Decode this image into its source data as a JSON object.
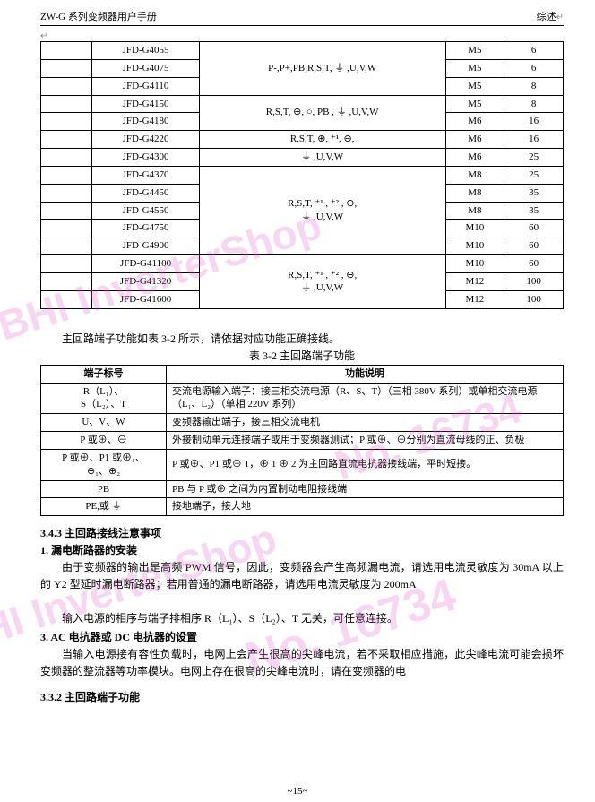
{
  "header": {
    "left": "ZW-G 系列变频器用户手册",
    "right": "综述"
  },
  "table1": {
    "rows": [
      {
        "model": "JFD-G4055",
        "s": "M5",
        "q": "6"
      },
      {
        "model": "JFD-G4075",
        "s": "M5",
        "q": "6"
      },
      {
        "model": "JFD-G4110",
        "s": "M5",
        "q": "8"
      },
      {
        "model": "JFD-G4150",
        "s": "M5",
        "q": "8"
      },
      {
        "model": "JFD-G4180",
        "s": "M6",
        "q": "16"
      },
      {
        "model": "JFD-G4220",
        "s": "M6",
        "q": "16"
      },
      {
        "model": "JFD-G4300",
        "s": "M6",
        "q": "25"
      },
      {
        "model": "JFD-G4370",
        "s": "M8",
        "q": "25"
      },
      {
        "model": "JFD-G4450",
        "s": "M8",
        "q": "35"
      },
      {
        "model": "JFD-G4550",
        "s": "M8",
        "q": "35"
      },
      {
        "model": "JFD-G4750",
        "s": "M10",
        "q": "60"
      },
      {
        "model": "JFD-G4900",
        "s": "M10",
        "q": "60"
      },
      {
        "model": "JFD-G41100",
        "s": "M10",
        "q": "60"
      },
      {
        "model": "JFD-G41320",
        "s": "M12",
        "q": "100"
      },
      {
        "model": "JFD-G41600",
        "s": "M12",
        "q": "100"
      }
    ],
    "termGroups": [
      {
        "span": 3,
        "text": "P-,P+,PB,R,S,T, ⏚ ,U,V,W"
      },
      {
        "span": 2,
        "text": "R,S,T, ⊕, ○, PB , ⏚ ,U,V,W"
      },
      {
        "span": 1,
        "text": "R,S,T, ⊕, ⁺¹, ⊖,"
      },
      {
        "span": 1,
        "text": "⏚ ,U,V,W"
      },
      {
        "span": 5,
        "text": "R,S,T, ⁺¹ , ⁺² , ⊖,\n⏚ ,U,V,W"
      },
      {
        "span": 3,
        "text": "R,S,T, ⁺¹ , ⁺² , ⊖,\n⏚ ,U,V,W"
      }
    ]
  },
  "caption1": "主回路端子功能如表 3-2 所示，请依据对应功能正确接线。",
  "caption1b": "表 3-2  主回路端子功能",
  "table2": {
    "head": [
      "端子标号",
      "功能说明"
    ],
    "rows": [
      {
        "c0": "R（L₁）、\nS（L₂）、T",
        "c1": "交流电源输入端子：接三相交流电源（R、S、T）（三相 380V 系列）或单相交流电源（L₁、L₂）（单相 220V 系列）"
      },
      {
        "c0": "U、V、W",
        "c1": "变频器输出端子，接三相交流电机"
      },
      {
        "c0": "P 或⊕、⊖",
        "c1": "外接制动单元连接端子或用于变频器测试；P 或⊕、⊖分别为直流母线的正、负极"
      },
      {
        "c0": "P 或⊕、P1 或⊕₁、\n⊕₁、⊕₂",
        "c1": "P 或⊕、P1 或⊕ 1，⊕ 1  ⊕ 2 为主回路直流电抗器接线端，平时短接。"
      },
      {
        "c0": "PB",
        "c1": "PB 与 P 或⊕ 之间为内置制动电阻接线端"
      },
      {
        "c0": "PE,或 ⏚",
        "c1": "接地端子，接大地"
      }
    ]
  },
  "sec343": "3.4.3  主回路接线注意事项",
  "sub1": "1. 漏电断路器的安装",
  "para1": "由于变频器的输出是高频 PWM 信号，因此，变频器会产生高频漏电流，请选用电流灵敏度为 30mA 以上的 Y2 型延时漏电断路器；若用普通的漏电断路器，请选用电流灵敏度为 200mA",
  "para2": "输入电源的相序与端子排相序 R（L₁）、S（L₂）、T 无关，可任意连接。",
  "sub3": "3. AC 电抗器或 DC 电抗器的设置",
  "para3": "当输入电源接有容性负载时，电网上会产生很高的尖峰电流，若不采取相应措施，此尖峰电流可能会损坏变频器的整流器等功率模块。电网上存在很高的尖峰电流时，请在变频器的电",
  "sec332": "3.3.2 主回路端子功能",
  "footer": "~15~",
  "watermarks": {
    "w1": "BHI InverterShop",
    "w2": "No. 16734",
    "w3": "BHI InverterShop",
    "w4": "No. 16734"
  }
}
